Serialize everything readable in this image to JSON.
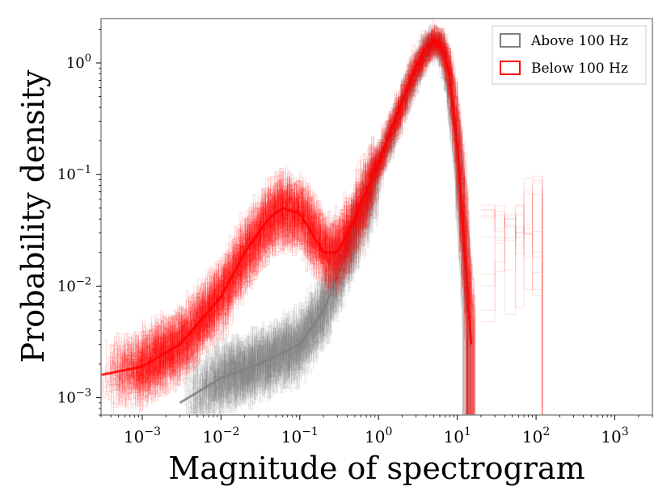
{
  "chart_data": {
    "type": "line",
    "title": "",
    "xlabel": "Magnitude of spectrogram",
    "ylabel": "Probability density",
    "xscale": "log",
    "yscale": "log",
    "xlim": [
      0.0003,
      3000
    ],
    "ylim": [
      0.0007,
      2.5
    ],
    "grid": false,
    "legend": {
      "position": "top-right"
    },
    "x_ticks": [
      {
        "value": 0.001,
        "base": "10",
        "exp": "−3"
      },
      {
        "value": 0.01,
        "base": "10",
        "exp": "−2"
      },
      {
        "value": 0.1,
        "base": "10",
        "exp": "−1"
      },
      {
        "value": 1,
        "base": "10",
        "exp": "0"
      },
      {
        "value": 10,
        "base": "10",
        "exp": "1"
      },
      {
        "value": 100,
        "base": "10",
        "exp": "2"
      },
      {
        "value": 1000,
        "base": "10",
        "exp": "3"
      }
    ],
    "y_ticks": [
      {
        "value": 0.001,
        "base": "10",
        "exp": "−3"
      },
      {
        "value": 0.01,
        "base": "10",
        "exp": "−2"
      },
      {
        "value": 0.1,
        "base": "10",
        "exp": "−1"
      },
      {
        "value": 1,
        "base": "10",
        "exp": "0"
      }
    ],
    "series": [
      {
        "name": "Above 100 Hz",
        "color": "#808080",
        "style": "step histogram bundle",
        "x": [
          0.003,
          0.01,
          0.03,
          0.1,
          0.2,
          0.5,
          1,
          2,
          3,
          4,
          5,
          6,
          7,
          8,
          10,
          12,
          14
        ],
        "y": [
          0.0009,
          0.0015,
          0.002,
          0.003,
          0.006,
          0.03,
          0.12,
          0.45,
          0.9,
          1.3,
          1.55,
          1.4,
          1.0,
          0.6,
          0.15,
          0.02,
          0.002
        ]
      },
      {
        "name": "Below 100 Hz",
        "color": "#ff0000",
        "style": "step histogram bundle",
        "x": [
          0.0003,
          0.001,
          0.003,
          0.01,
          0.02,
          0.04,
          0.06,
          0.1,
          0.2,
          0.3,
          0.5,
          1,
          2,
          3,
          4,
          5,
          6,
          7,
          8,
          10,
          12,
          15
        ],
        "y": [
          0.0016,
          0.0019,
          0.003,
          0.008,
          0.02,
          0.04,
          0.05,
          0.045,
          0.02,
          0.02,
          0.04,
          0.13,
          0.45,
          0.95,
          1.35,
          1.6,
          1.5,
          1.15,
          0.75,
          0.2,
          0.03,
          0.003
        ]
      }
    ]
  }
}
